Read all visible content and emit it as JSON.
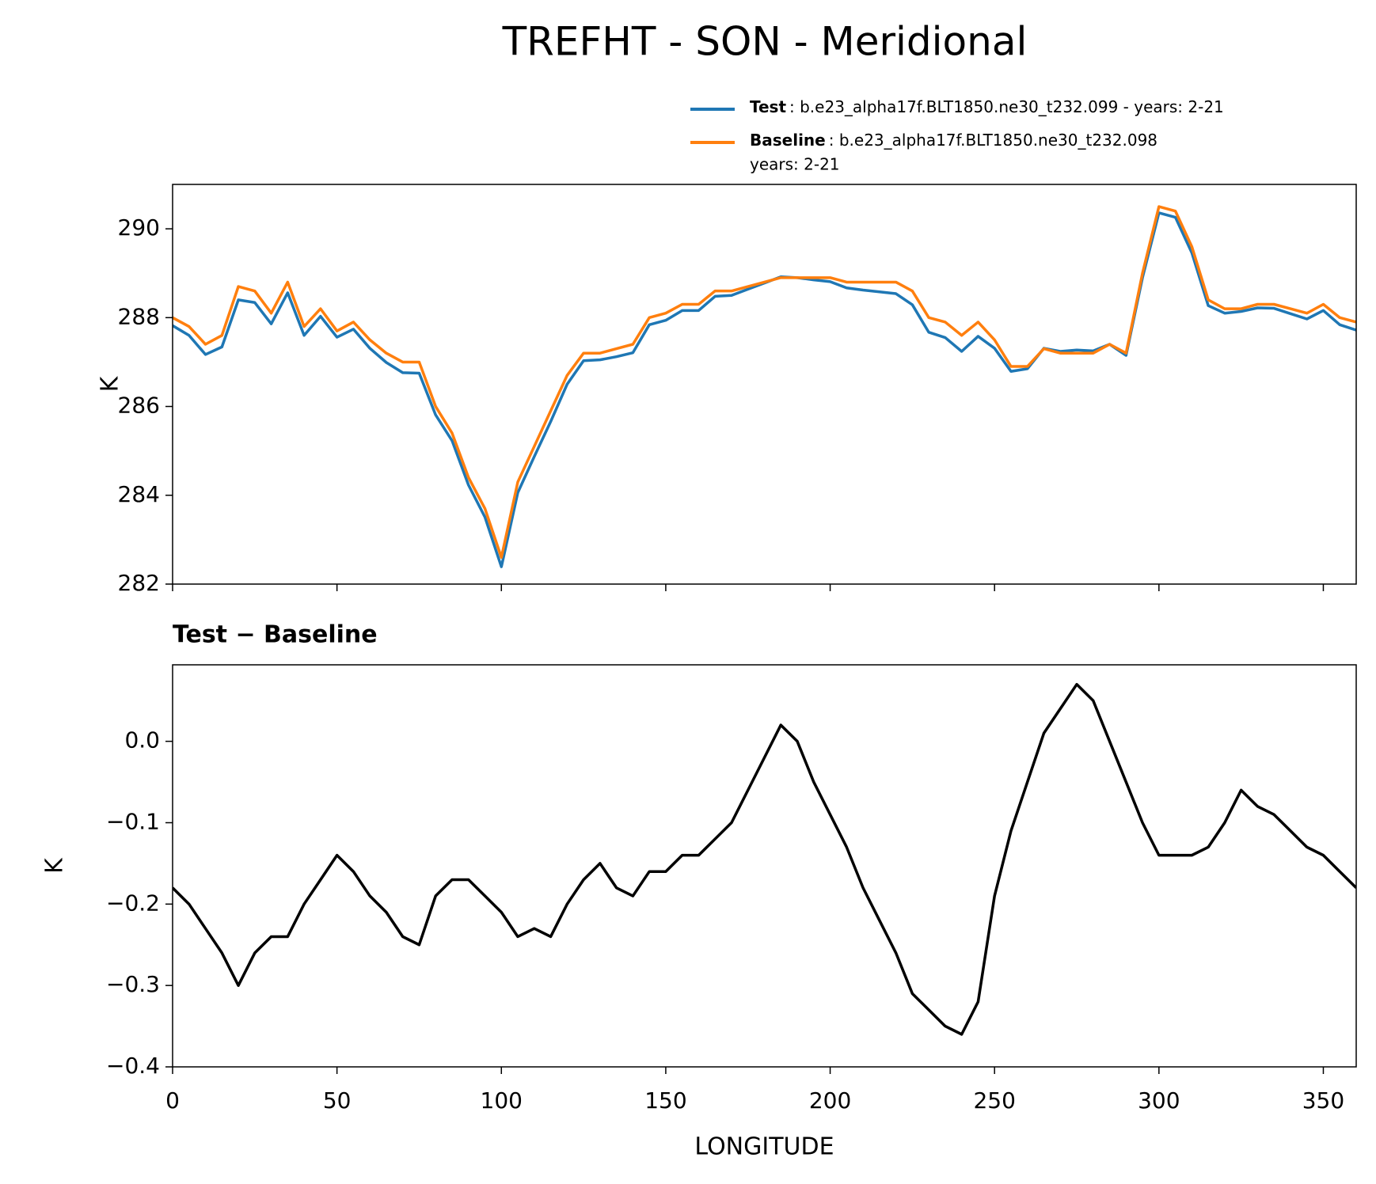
{
  "chart_data": [
    {
      "type": "line",
      "title": "TREFHT - SON - Meridional",
      "ylabel": "K",
      "x": [
        0,
        5,
        10,
        15,
        20,
        25,
        30,
        35,
        40,
        45,
        50,
        55,
        60,
        65,
        70,
        75,
        80,
        85,
        90,
        95,
        100,
        105,
        110,
        115,
        120,
        125,
        130,
        135,
        140,
        145,
        150,
        155,
        160,
        165,
        170,
        175,
        180,
        185,
        190,
        195,
        200,
        205,
        210,
        215,
        220,
        225,
        230,
        235,
        240,
        245,
        250,
        255,
        260,
        265,
        270,
        275,
        280,
        285,
        290,
        295,
        300,
        305,
        310,
        315,
        320,
        325,
        330,
        335,
        340,
        345,
        350,
        355,
        360
      ],
      "series": [
        {
          "name": "Test",
          "legend_text": [
            ": b.e23_alpha17f.BLT1850.ne30_t232.099 - years: 2-21"
          ],
          "color": "#1f77b4",
          "values": [
            287.82,
            287.6,
            287.17,
            287.34,
            288.4,
            288.34,
            287.86,
            288.56,
            287.6,
            288.03,
            287.56,
            287.74,
            287.31,
            286.99,
            286.76,
            286.75,
            285.81,
            285.23,
            284.23,
            283.51,
            282.39,
            284.06,
            284.87,
            285.66,
            286.5,
            287.03,
            287.05,
            287.12,
            287.21,
            287.84,
            287.94,
            288.16,
            288.16,
            288.48,
            288.5,
            288.64,
            288.78,
            288.92,
            288.9,
            288.85,
            288.81,
            288.67,
            288.62,
            288.58,
            288.54,
            288.29,
            287.67,
            287.55,
            287.24,
            287.58,
            287.31,
            286.79,
            286.85,
            287.31,
            287.24,
            287.27,
            287.25,
            287.4,
            287.15,
            288.9,
            290.36,
            290.26,
            289.46,
            288.27,
            288.1,
            288.14,
            288.22,
            288.21,
            288.09,
            287.97,
            288.16,
            287.84,
            287.72
          ]
        },
        {
          "name": "Baseline",
          "legend_text": [
            ": b.e23_alpha17f.BLT1850.ne30_t232.098",
            "years: 2-21"
          ],
          "color": "#ff7f0e",
          "values": [
            288.0,
            287.8,
            287.4,
            287.6,
            288.7,
            288.6,
            288.1,
            288.8,
            287.8,
            288.2,
            287.7,
            287.9,
            287.5,
            287.2,
            287.0,
            287.0,
            286.0,
            285.4,
            284.4,
            283.7,
            282.6,
            284.3,
            285.1,
            285.9,
            286.7,
            287.2,
            287.2,
            287.3,
            287.4,
            288.0,
            288.1,
            288.3,
            288.3,
            288.6,
            288.6,
            288.7,
            288.8,
            288.9,
            288.9,
            288.9,
            288.9,
            288.8,
            288.8,
            288.8,
            288.8,
            288.6,
            288.0,
            287.9,
            287.6,
            287.9,
            287.5,
            286.9,
            286.9,
            287.3,
            287.2,
            287.2,
            287.2,
            287.4,
            287.2,
            289.0,
            290.5,
            290.4,
            289.6,
            288.4,
            288.2,
            288.2,
            288.3,
            288.3,
            288.2,
            288.1,
            288.3,
            288.0,
            287.9
          ]
        }
      ],
      "xlim": [
        0,
        360
      ],
      "xticks": [
        0,
        50,
        100,
        150,
        200,
        250,
        300,
        350
      ],
      "ylim": [
        282,
        291
      ],
      "yticks": [
        282,
        284,
        286,
        288,
        290
      ]
    },
    {
      "type": "line",
      "title": "Test − Baseline",
      "xlabel": "LONGITUDE",
      "ylabel": "K",
      "x": [
        0,
        5,
        10,
        15,
        20,
        25,
        30,
        35,
        40,
        45,
        50,
        55,
        60,
        65,
        70,
        75,
        80,
        85,
        90,
        95,
        100,
        105,
        110,
        115,
        120,
        125,
        130,
        135,
        140,
        145,
        150,
        155,
        160,
        165,
        170,
        175,
        180,
        185,
        190,
        195,
        200,
        205,
        210,
        215,
        220,
        225,
        230,
        235,
        240,
        245,
        250,
        255,
        260,
        265,
        270,
        275,
        280,
        285,
        290,
        295,
        300,
        305,
        310,
        315,
        320,
        325,
        330,
        335,
        340,
        345,
        350,
        355,
        360
      ],
      "series": [
        {
          "color": "#000000",
          "values": [
            -0.18,
            -0.2,
            -0.23,
            -0.26,
            -0.3,
            -0.26,
            -0.24,
            -0.24,
            -0.2,
            -0.17,
            -0.14,
            -0.16,
            -0.19,
            -0.21,
            -0.24,
            -0.25,
            -0.19,
            -0.17,
            -0.17,
            -0.19,
            -0.21,
            -0.24,
            -0.23,
            -0.24,
            -0.2,
            -0.17,
            -0.15,
            -0.18,
            -0.19,
            -0.16,
            -0.16,
            -0.14,
            -0.14,
            -0.12,
            -0.1,
            -0.06,
            -0.02,
            0.02,
            0.0,
            -0.05,
            -0.09,
            -0.13,
            -0.18,
            -0.22,
            -0.26,
            -0.31,
            -0.33,
            -0.35,
            -0.36,
            -0.32,
            -0.19,
            -0.11,
            -0.05,
            0.01,
            0.04,
            0.07,
            0.05,
            0.0,
            -0.05,
            -0.1,
            -0.14,
            -0.14,
            -0.14,
            -0.13,
            -0.1,
            -0.06,
            -0.08,
            -0.09,
            -0.11,
            -0.13,
            -0.14,
            -0.16,
            -0.18
          ]
        }
      ],
      "xlim": [
        0,
        360
      ],
      "xticks": [
        0,
        50,
        100,
        150,
        200,
        250,
        300,
        350
      ],
      "ylim": [
        -0.4,
        0.094
      ],
      "yticks": [
        {
          "value": -0.4,
          "label": "−0.4"
        },
        {
          "value": -0.3,
          "label": "−0.3"
        },
        {
          "value": -0.2,
          "label": "−0.2"
        },
        {
          "value": -0.1,
          "label": "−0.1"
        },
        {
          "value": 0,
          "label": "0.0"
        }
      ]
    }
  ]
}
